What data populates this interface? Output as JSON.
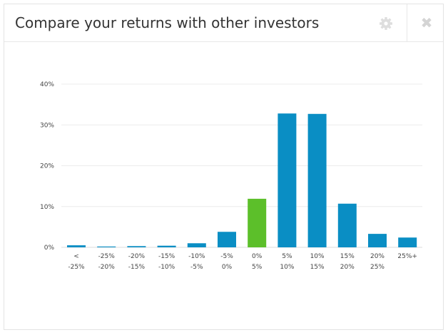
{
  "widget": {
    "title": "Compare your returns with other investors",
    "settings_icon": "gear-icon",
    "close_icon": "close-icon",
    "close_glyph": "✖"
  },
  "colors": {
    "bar": "#0a8ec4",
    "highlight": "#5cbf2a",
    "gridline": "#ececec",
    "axis": "#dcdcdc"
  },
  "chart_data": {
    "type": "bar",
    "title": "",
    "xlabel": "",
    "ylabel": "",
    "ylim": [
      0,
      40
    ],
    "yticks": [
      {
        "value": 0,
        "label": "0%"
      },
      {
        "value": 10,
        "label": "10%"
      },
      {
        "value": 20,
        "label": "20%"
      },
      {
        "value": 30,
        "label": "30%"
      },
      {
        "value": 40,
        "label": "40%"
      }
    ],
    "grid": true,
    "legend": "none",
    "categories": [
      {
        "line1": "<",
        "line2": "-25%"
      },
      {
        "line1": "-25%",
        "line2": "-20%"
      },
      {
        "line1": "-20%",
        "line2": "-15%"
      },
      {
        "line1": "-15%",
        "line2": "-10%"
      },
      {
        "line1": "-10%",
        "line2": "-5%"
      },
      {
        "line1": "-5%",
        "line2": "0%"
      },
      {
        "line1": "0%",
        "line2": "5%"
      },
      {
        "line1": "5%",
        "line2": "10%"
      },
      {
        "line1": "10%",
        "line2": "15%"
      },
      {
        "line1": "15%",
        "line2": "20%"
      },
      {
        "line1": "20%",
        "line2": "25%"
      },
      {
        "line1": "25%+",
        "line2": ""
      }
    ],
    "values": [
      0.5,
      0.2,
      0.3,
      0.4,
      1.0,
      3.8,
      11.9,
      32.8,
      32.7,
      10.7,
      3.3,
      2.4
    ],
    "highlight_index": 6
  }
}
